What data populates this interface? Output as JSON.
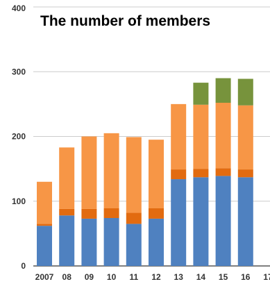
{
  "chart_data": {
    "type": "bar",
    "stacked": true,
    "title": "The number of members",
    "xlabel": "",
    "ylabel": "",
    "categories": [
      "2007",
      "08",
      "09",
      "10",
      "11",
      "12",
      "13",
      "14",
      "15",
      "16",
      "17"
    ],
    "ylim": [
      0,
      400
    ],
    "yticks": [
      0,
      100,
      200,
      300,
      400
    ],
    "grid": true,
    "series": [
      {
        "color": "#4f81c0",
        "values": [
          62,
          78,
          73,
          74,
          65,
          73,
          134,
          137,
          139,
          137,
          null
        ]
      },
      {
        "color": "#e26b10",
        "values": [
          3,
          10,
          15,
          15,
          17,
          16,
          15,
          13,
          12,
          12,
          null
        ]
      },
      {
        "color": "#f79646",
        "values": [
          65,
          95,
          112,
          116,
          117,
          106,
          101,
          99,
          101,
          99,
          null
        ]
      },
      {
        "color": "#77933c",
        "values": [
          0,
          0,
          0,
          0,
          0,
          0,
          0,
          34,
          38,
          41,
          null
        ]
      }
    ]
  }
}
